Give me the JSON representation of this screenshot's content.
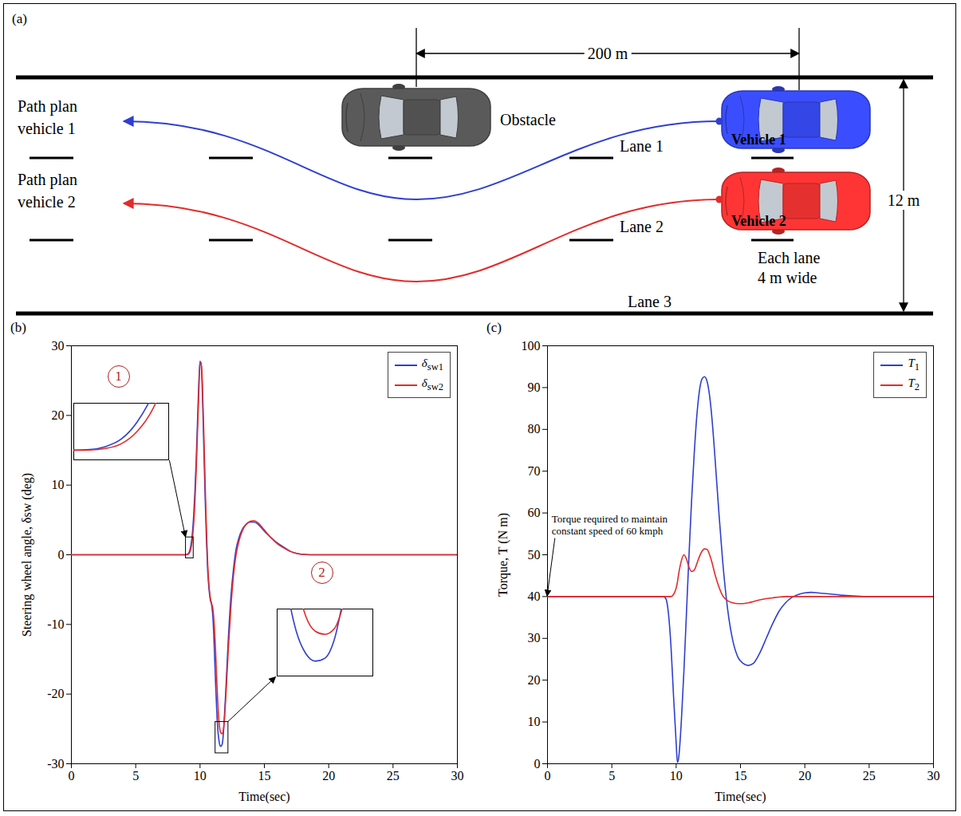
{
  "diagram": {
    "panel": "(a)",
    "distance_label": "200 m",
    "width_label": "12 m",
    "lane_note": "Each lane 4 m wide",
    "lanes": [
      "Lane 1",
      "Lane 2",
      "Lane 3"
    ],
    "obstacle": "Obstacle",
    "vehicles": [
      {
        "name": "Vehicle 1",
        "color": "#2f3fd0",
        "path_label": "Path plan vehicle 1"
      },
      {
        "name": "Vehicle 2",
        "color": "#e32b2b",
        "path_label": "Path plan vehicle 2"
      }
    ]
  },
  "chart_data": [
    {
      "type": "line",
      "panel": "(b)",
      "xlabel": "Time(sec)",
      "ylabel": "Steering wheel angle, δsw (deg)",
      "x": [
        0,
        5,
        8,
        8.8,
        9.0,
        9.1,
        9.2,
        9.3,
        9.4,
        9.5,
        9.6,
        9.7,
        9.8,
        9.9,
        10.0,
        10.1,
        10.2,
        10.3,
        10.4,
        10.5,
        10.6,
        10.7,
        10.8,
        10.9,
        11.0,
        11.1,
        11.2,
        11.3,
        11.4,
        11.5,
        11.6,
        11.7,
        11.8,
        11.9,
        12.0,
        12.2,
        12.4,
        12.6,
        12.8,
        13.0,
        13.3,
        13.6,
        13.9,
        14.2,
        14.5,
        14.8,
        15.2,
        15.6,
        16.0,
        16.5,
        17.0,
        17.5,
        18.0,
        18.5,
        19,
        20,
        25,
        30
      ],
      "series": [
        {
          "name": "δsw1",
          "color": "#2f3fd0",
          "values": [
            0,
            0,
            0,
            0,
            0.05,
            0.2,
            0.6,
            1.5,
            3,
            5.5,
            9,
            13.5,
            19,
            24.5,
            27.8,
            27,
            22,
            15,
            8,
            2,
            -2.5,
            -5,
            -6.5,
            -7.2,
            -9,
            -13,
            -18,
            -22.5,
            -25.5,
            -27,
            -27.5,
            -27.3,
            -26,
            -23,
            -19.5,
            -12,
            -6,
            -2,
            0.8,
            2.3,
            3.7,
            4.4,
            4.7,
            4.7,
            4.4,
            3.8,
            3,
            2.3,
            1.7,
            1.1,
            0.5,
            0.2,
            0.05,
            0,
            0,
            0,
            0,
            0
          ]
        },
        {
          "name": "δsw2",
          "color": "#e32b2b",
          "values": [
            0,
            0,
            0,
            0,
            0.02,
            0.1,
            0.35,
            1.0,
            2.2,
            4.3,
            7.5,
            12,
            17.5,
            23,
            27.5,
            27.6,
            23.5,
            17,
            10,
            3.5,
            -1.5,
            -4.5,
            -6.2,
            -7,
            -7.8,
            -10,
            -13.5,
            -18,
            -22,
            -24.5,
            -25.5,
            -25.7,
            -25.3,
            -23.5,
            -20.5,
            -13.5,
            -7.5,
            -3,
            0,
            1.8,
            3.5,
            4.4,
            4.8,
            4.9,
            4.6,
            4.0,
            3.1,
            2.3,
            1.6,
            1.0,
            0.5,
            0.2,
            0.05,
            0,
            0,
            0,
            0,
            0
          ]
        }
      ],
      "xlim": [
        0,
        30
      ],
      "xticks": [
        0,
        5,
        10,
        15,
        20,
        25,
        30
      ],
      "ylim": [
        -30,
        30
      ],
      "yticks": [
        -30,
        -20,
        -10,
        0,
        10,
        20,
        30
      ],
      "grid": false,
      "legend": "upper right",
      "insets": [
        {
          "label": "1",
          "xlim": [
            8.9,
            9.5
          ],
          "ylim": [
            -0.5,
            2.5
          ]
        },
        {
          "label": "2",
          "xlim": [
            11.2,
            12.2
          ],
          "ylim": [
            -28.5,
            -24
          ]
        }
      ]
    },
    {
      "type": "line",
      "panel": "(c)",
      "xlabel": "Time(sec)",
      "ylabel": "Torque, T (N m)",
      "x": [
        0,
        5,
        8,
        9.0,
        9.2,
        9.4,
        9.6,
        9.8,
        10.0,
        10.1,
        10.2,
        10.4,
        10.6,
        10.8,
        11.0,
        11.2,
        11.4,
        11.6,
        11.8,
        12.0,
        12.2,
        12.4,
        12.6,
        12.8,
        13.0,
        13.3,
        13.6,
        14.0,
        14.4,
        14.8,
        15.2,
        15.6,
        16.0,
        16.5,
        17,
        17.5,
        18,
        18.5,
        19,
        19.5,
        20,
        20.5,
        21,
        22,
        23,
        24,
        25,
        30
      ],
      "series": [
        {
          "name": "T1",
          "color": "#2f3fd0",
          "values": [
            40,
            40,
            40,
            40,
            39.5,
            36,
            28,
            16,
            5,
            0.3,
            1.5,
            10,
            22,
            36,
            50,
            63,
            74,
            83,
            89,
            92,
            92.6,
            91.5,
            88,
            82,
            74,
            61,
            49,
            37,
            29.5,
            25.5,
            24,
            23.5,
            24,
            26.5,
            30,
            33.5,
            36.5,
            38.5,
            39.8,
            40.5,
            40.9,
            41,
            40.9,
            40.6,
            40.3,
            40.1,
            40,
            40
          ]
        },
        {
          "name": "T2",
          "color": "#e32b2b",
          "values": [
            40,
            40,
            40,
            40,
            40,
            40,
            40,
            40.5,
            42,
            43.5,
            45.5,
            48.5,
            50,
            49,
            47,
            46,
            46.3,
            47.8,
            49.5,
            50.8,
            51.4,
            51.3,
            50,
            48,
            45.5,
            42.5,
            40.3,
            39,
            38.5,
            38.3,
            38.3,
            38.5,
            38.8,
            39.2,
            39.5,
            39.7,
            39.9,
            40,
            40,
            40,
            40,
            40,
            40,
            40,
            40,
            40,
            40,
            40
          ]
        }
      ],
      "xlim": [
        0,
        30
      ],
      "xticks": [
        0,
        5,
        10,
        15,
        20,
        25,
        30
      ],
      "ylim": [
        0,
        100
      ],
      "yticks": [
        0,
        10,
        20,
        30,
        40,
        50,
        60,
        70,
        80,
        90,
        100
      ],
      "grid": false,
      "legend": "upper right",
      "annotations": [
        {
          "text": "Torque required to maintain constant speed of 60 kmph",
          "x": 0,
          "y": 40
        }
      ]
    }
  ]
}
